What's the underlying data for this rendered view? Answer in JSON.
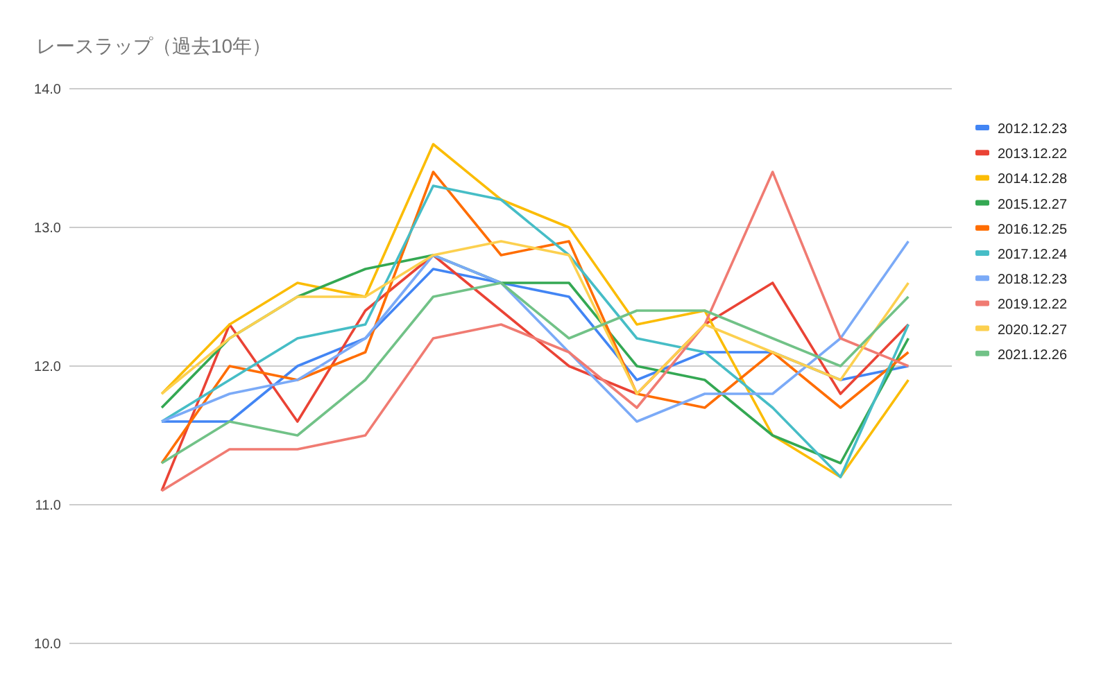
{
  "chart_data": {
    "type": "line",
    "title": "レースラップ（過去10年）",
    "categories": [
      null,
      null,
      null,
      null,
      null,
      null,
      null,
      null,
      null,
      null,
      null,
      null,
      null
    ],
    "ylim": [
      10,
      14
    ],
    "yticks": [
      {
        "value": 10,
        "label": "10.0"
      },
      {
        "value": 11,
        "label": "11.0"
      },
      {
        "value": 12,
        "label": "12.0"
      },
      {
        "value": 13,
        "label": "13.0"
      },
      {
        "value": 14,
        "label": "14.0"
      }
    ],
    "grid": "y",
    "legend": "right",
    "tick_labels": "y",
    "line_style": "solid",
    "series": [
      {
        "name": "2012.12.23",
        "color": "#4285f4",
        "values": [
          null,
          11.6,
          11.6,
          12.0,
          12.2,
          12.7,
          12.6,
          12.5,
          11.9,
          12.1,
          12.1,
          11.9,
          12.0
        ]
      },
      {
        "name": "2013.12.22",
        "color": "#ea4335",
        "values": [
          null,
          11.1,
          12.3,
          11.6,
          12.4,
          12.8,
          12.4,
          12.0,
          11.8,
          12.3,
          12.6,
          11.8,
          12.3
        ]
      },
      {
        "name": "2014.12.28",
        "color": "#fbbc04",
        "values": [
          null,
          11.8,
          12.3,
          12.6,
          12.5,
          13.6,
          13.2,
          13.0,
          12.3,
          12.4,
          11.5,
          11.2,
          11.9
        ]
      },
      {
        "name": "2015.12.27",
        "color": "#34a853",
        "values": [
          null,
          11.7,
          12.2,
          12.5,
          12.7,
          12.8,
          12.6,
          12.6,
          12.0,
          11.9,
          11.5,
          11.3,
          12.2
        ]
      },
      {
        "name": "2016.12.25",
        "color": "#ff6d01",
        "values": [
          null,
          11.3,
          12.0,
          11.9,
          12.1,
          13.4,
          12.8,
          12.9,
          11.8,
          11.7,
          12.1,
          11.7,
          12.1
        ]
      },
      {
        "name": "2017.12.24",
        "color": "#46bdc6",
        "values": [
          null,
          11.6,
          11.9,
          12.2,
          12.3,
          13.3,
          13.2,
          12.8,
          12.2,
          12.1,
          11.7,
          11.2,
          12.3
        ]
      },
      {
        "name": "2018.12.23",
        "color": "#7baaf7",
        "values": [
          null,
          11.6,
          11.8,
          11.9,
          12.2,
          12.8,
          12.6,
          12.1,
          11.6,
          11.8,
          11.8,
          12.2,
          12.9
        ]
      },
      {
        "name": "2019.12.22",
        "color": "#f07b72",
        "values": [
          null,
          11.1,
          11.4,
          11.4,
          11.5,
          12.2,
          12.3,
          12.1,
          11.7,
          12.3,
          13.4,
          12.2,
          12.0
        ]
      },
      {
        "name": "2020.12.27",
        "color": "#fcd04f",
        "values": [
          null,
          11.8,
          12.2,
          12.5,
          12.5,
          12.8,
          12.9,
          12.8,
          11.8,
          12.3,
          12.1,
          11.9,
          12.6
        ]
      },
      {
        "name": "2021.12.26",
        "color": "#71c287",
        "values": [
          null,
          11.3,
          11.6,
          11.5,
          11.9,
          12.5,
          12.6,
          12.2,
          12.4,
          12.4,
          12.2,
          12.0,
          12.5
        ]
      }
    ]
  }
}
